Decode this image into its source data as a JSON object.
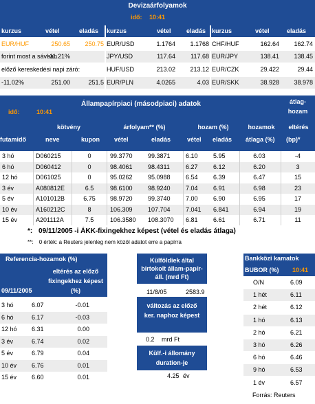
{
  "deviza": {
    "title": "Devizaárfolyamok",
    "ido_label": "idő:",
    "ido_value": "10:41",
    "headers": [
      "kurzus",
      "vétel",
      "eladás",
      "kurzus",
      "vétel",
      "eladás",
      "kurzus",
      "vétel",
      "eladás"
    ],
    "rows": [
      [
        "EUR/HUF",
        "250.65",
        "250.75",
        "EUR/USD",
        "1.1764",
        "1.1768",
        "CHF/HUF",
        "162.64",
        "162.74"
      ],
      [
        "forint most a sávban",
        "-11.21%",
        "",
        "JPY/USD",
        "117.64",
        "117.68",
        "EUR/JPY",
        "138.41",
        "138.45"
      ],
      [
        "előző kereskedési napi záró:",
        "",
        "",
        "HUF/USD",
        "213.02",
        "213.12",
        "EUR/CZK",
        "29.422",
        "29.44"
      ],
      [
        "-11.02%",
        "251.00",
        "251.5",
        "EUR/PLN",
        "4.0265",
        "4.03",
        "EUR/SKK",
        "38.928",
        "38.978"
      ]
    ]
  },
  "allampapir": {
    "title": "Állampapírpiaci (másodpiaci) adatok",
    "atlaghozam_label": "átlag-hozam",
    "ido_label": "idő:",
    "ido_value": "10:41",
    "header1": {
      "kotveny": "kötvény",
      "arfolyam": "árfolyam** (%)",
      "hozam": "hozam (%)",
      "hozamok": "hozamok",
      "elteres": "eltérés"
    },
    "header2": {
      "futamido": "futamidő",
      "neve": "neve",
      "kupon": "kupon",
      "vetel": "vétel",
      "eladas": "eladás",
      "vetel2": "vétel",
      "eladas2": "eladás",
      "atlaga": "átlaga (%)",
      "bp": "(bp)*"
    },
    "rows": [
      [
        "3 hó",
        "D060215",
        "0",
        "99.3770",
        "99.3871",
        "6.10",
        "5.95",
        "6.03",
        "-4"
      ],
      [
        "6 hó",
        "D060412",
        "0",
        "98.4061",
        "98.4311",
        "6.27",
        "6.12",
        "6.20",
        "3"
      ],
      [
        "12 hó",
        "D061025",
        "0",
        "95.0262",
        "95.0988",
        "6.54",
        "6.39",
        "6.47",
        "15"
      ],
      [
        "3 év",
        "A080812E",
        "6.5",
        "98.6100",
        "98.9240",
        "7.04",
        "6.91",
        "6.98",
        "23"
      ],
      [
        "5 év",
        "A101012B",
        "6.75",
        "98.9720",
        "99.3740",
        "7.00",
        "6.90",
        "6.95",
        "17"
      ],
      [
        "10 év",
        "A160212C",
        "8",
        "106.309",
        "107.704",
        "7.041",
        "6.841",
        "6.94",
        "19"
      ],
      [
        "15 év",
        "A201112A",
        "7.5",
        "106.3580",
        "108.3070",
        "6.81",
        "6.61",
        "6.71",
        "11"
      ]
    ],
    "note1_star": "*:",
    "note1": "09/11/2005 -i ÁKK-fixingekhez képest (vétel és eladás átlaga)",
    "note2_star": "**:",
    "note2": "0 érték: a Reuters jelenleg nem közöl adatot erre a papírra"
  },
  "referencia": {
    "title": "Referencia-hozamok (%)",
    "date": "09/11/2005",
    "elteres_header": "eltérés az előző fixingekhez képest (%)",
    "rows": [
      [
        "3 hó",
        "6.07",
        "-0.01"
      ],
      [
        "6 hó",
        "6.17",
        "-0.03"
      ],
      [
        "12 hó",
        "6.31",
        "0.00"
      ],
      [
        "3 év",
        "6.74",
        "0.02"
      ],
      [
        "5 év",
        "6.79",
        "0.04"
      ],
      [
        "10 év",
        "6.76",
        "0.01"
      ],
      [
        "15 év",
        "6.60",
        "0.01"
      ]
    ]
  },
  "kulfoldiek": {
    "title": "Külföldiek által birtokolt állam-papír-áll. (mrd Ft)",
    "date": "11/8/05",
    "value": "2583.9",
    "valtozas_title": "változás az előző ker. naphoz képest",
    "valtozas_value": "0.2",
    "valtozas_unit": "mrd Ft",
    "duration_title": "Külf.-i állomány duration-je",
    "duration_value": "4.25",
    "duration_unit": "év"
  },
  "bankkozi": {
    "title": "Bankközi kamatok",
    "bubor_label": "BUBOR (%)",
    "time": "10:41",
    "rows": [
      [
        "O/N",
        "6.09"
      ],
      [
        "1 hét",
        "6.11"
      ],
      [
        "2 hét",
        "6.12"
      ],
      [
        "1 hó",
        "6.13"
      ],
      [
        "2 hó",
        "6.21"
      ],
      [
        "3 hó",
        "6.26"
      ],
      [
        "6 hó",
        "6.46"
      ],
      [
        "9 hó",
        "6.53"
      ],
      [
        "1 év",
        "6.57"
      ]
    ]
  },
  "source": "Forrás: Reuters",
  "colors": {
    "header_blue": "#1f4c95",
    "accent_orange": "#ff9900",
    "stripe_grey": "#ececec"
  }
}
